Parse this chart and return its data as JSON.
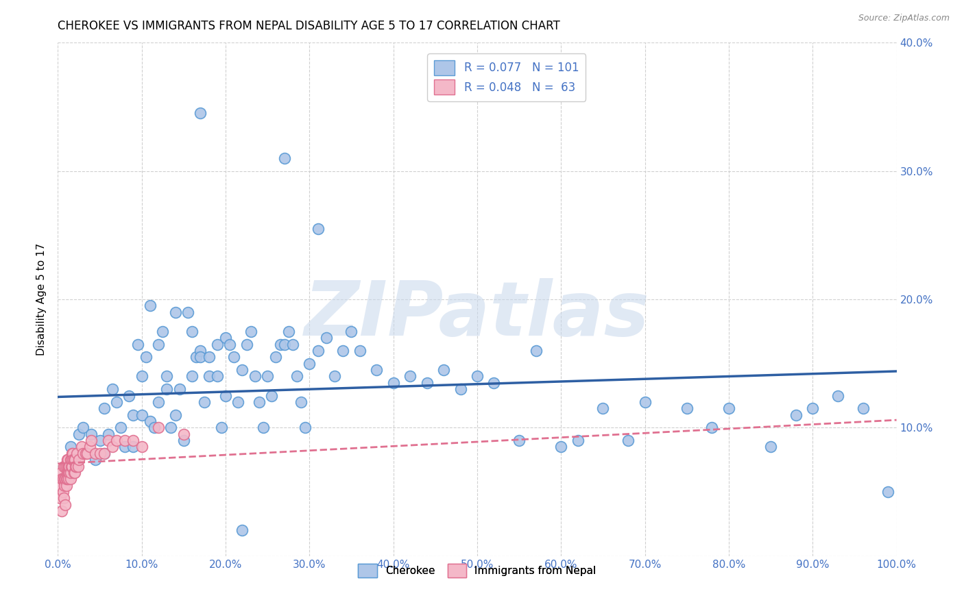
{
  "title": "CHEROKEE VS IMMIGRANTS FROM NEPAL DISABILITY AGE 5 TO 17 CORRELATION CHART",
  "source": "Source: ZipAtlas.com",
  "ylabel": "Disability Age 5 to 17",
  "xlim": [
    0,
    1.0
  ],
  "ylim": [
    0,
    0.4
  ],
  "xticks": [
    0.0,
    0.1,
    0.2,
    0.3,
    0.4,
    0.5,
    0.6,
    0.7,
    0.8,
    0.9,
    1.0
  ],
  "yticks": [
    0.0,
    0.1,
    0.2,
    0.3,
    0.4
  ],
  "xticklabels": [
    "0.0%",
    "10.0%",
    "20.0%",
    "30.0%",
    "40.0%",
    "50.0%",
    "60.0%",
    "70.0%",
    "80.0%",
    "90.0%",
    "100.0%"
  ],
  "yticklabels_right": [
    "",
    "10.0%",
    "20.0%",
    "30.0%",
    "40.0%"
  ],
  "legend_text1": "R = 0.077   N = 101",
  "legend_text2": "R = 0.048   N =  63",
  "cherokee_color": "#aec6e8",
  "cherokee_edge_color": "#5b9bd5",
  "nepal_color": "#f4b8c8",
  "nepal_edge_color": "#e07090",
  "cherokee_line_color": "#2e5fa3",
  "nepal_line_color": "#e07090",
  "watermark": "ZIPatlas",
  "background_color": "#ffffff",
  "grid_color": "#d0d0d0",
  "tick_color": "#4472c4",
  "cherokee_x": [
    0.015,
    0.025,
    0.03,
    0.04,
    0.045,
    0.05,
    0.055,
    0.055,
    0.06,
    0.065,
    0.07,
    0.075,
    0.08,
    0.085,
    0.09,
    0.09,
    0.095,
    0.1,
    0.1,
    0.105,
    0.11,
    0.11,
    0.115,
    0.12,
    0.12,
    0.125,
    0.13,
    0.13,
    0.135,
    0.14,
    0.14,
    0.145,
    0.15,
    0.155,
    0.16,
    0.16,
    0.165,
    0.17,
    0.17,
    0.175,
    0.18,
    0.18,
    0.19,
    0.19,
    0.195,
    0.2,
    0.2,
    0.205,
    0.21,
    0.215,
    0.22,
    0.225,
    0.23,
    0.235,
    0.24,
    0.245,
    0.25,
    0.255,
    0.26,
    0.265,
    0.27,
    0.275,
    0.28,
    0.285,
    0.29,
    0.295,
    0.3,
    0.31,
    0.32,
    0.33,
    0.34,
    0.35,
    0.36,
    0.38,
    0.4,
    0.42,
    0.44,
    0.46,
    0.48,
    0.5,
    0.52,
    0.55,
    0.57,
    0.6,
    0.62,
    0.65,
    0.68,
    0.7,
    0.75,
    0.78,
    0.8,
    0.85,
    0.88,
    0.9,
    0.93,
    0.96,
    0.17,
    0.22,
    0.27,
    0.31,
    0.99
  ],
  "cherokee_y": [
    0.085,
    0.095,
    0.1,
    0.095,
    0.075,
    0.09,
    0.08,
    0.115,
    0.095,
    0.13,
    0.12,
    0.1,
    0.085,
    0.125,
    0.11,
    0.085,
    0.165,
    0.14,
    0.11,
    0.155,
    0.105,
    0.195,
    0.1,
    0.165,
    0.12,
    0.175,
    0.14,
    0.13,
    0.1,
    0.19,
    0.11,
    0.13,
    0.09,
    0.19,
    0.175,
    0.14,
    0.155,
    0.16,
    0.155,
    0.12,
    0.155,
    0.14,
    0.165,
    0.14,
    0.1,
    0.17,
    0.125,
    0.165,
    0.155,
    0.12,
    0.145,
    0.165,
    0.175,
    0.14,
    0.12,
    0.1,
    0.14,
    0.125,
    0.155,
    0.165,
    0.165,
    0.175,
    0.165,
    0.14,
    0.12,
    0.1,
    0.15,
    0.16,
    0.17,
    0.14,
    0.16,
    0.175,
    0.16,
    0.145,
    0.135,
    0.14,
    0.135,
    0.145,
    0.13,
    0.14,
    0.135,
    0.09,
    0.16,
    0.085,
    0.09,
    0.115,
    0.09,
    0.12,
    0.115,
    0.1,
    0.115,
    0.085,
    0.11,
    0.115,
    0.125,
    0.115,
    0.345,
    0.02,
    0.31,
    0.255,
    0.05
  ],
  "nepal_x": [
    0.002,
    0.003,
    0.004,
    0.005,
    0.005,
    0.006,
    0.006,
    0.007,
    0.007,
    0.008,
    0.008,
    0.009,
    0.009,
    0.009,
    0.01,
    0.01,
    0.01,
    0.011,
    0.011,
    0.011,
    0.012,
    0.012,
    0.012,
    0.013,
    0.013,
    0.013,
    0.014,
    0.014,
    0.015,
    0.015,
    0.015,
    0.016,
    0.016,
    0.017,
    0.017,
    0.018,
    0.018,
    0.019,
    0.019,
    0.02,
    0.02,
    0.021,
    0.022,
    0.023,
    0.024,
    0.025,
    0.028,
    0.03,
    0.033,
    0.035,
    0.038,
    0.04,
    0.045,
    0.05,
    0.055,
    0.06,
    0.065,
    0.07,
    0.08,
    0.09,
    0.1,
    0.12,
    0.15
  ],
  "nepal_y": [
    0.055,
    0.045,
    0.065,
    0.035,
    0.06,
    0.05,
    0.06,
    0.045,
    0.07,
    0.055,
    0.06,
    0.06,
    0.04,
    0.07,
    0.055,
    0.07,
    0.06,
    0.075,
    0.065,
    0.06,
    0.07,
    0.065,
    0.075,
    0.065,
    0.07,
    0.06,
    0.065,
    0.07,
    0.075,
    0.06,
    0.065,
    0.075,
    0.07,
    0.08,
    0.07,
    0.08,
    0.075,
    0.075,
    0.065,
    0.075,
    0.065,
    0.07,
    0.07,
    0.08,
    0.07,
    0.075,
    0.085,
    0.08,
    0.08,
    0.08,
    0.085,
    0.09,
    0.08,
    0.08,
    0.08,
    0.09,
    0.085,
    0.09,
    0.09,
    0.09,
    0.085,
    0.1,
    0.095
  ],
  "cherokee_trend": [
    0.0,
    1.0,
    0.124,
    0.144
  ],
  "nepal_trend": [
    0.0,
    1.0,
    0.072,
    0.106
  ]
}
